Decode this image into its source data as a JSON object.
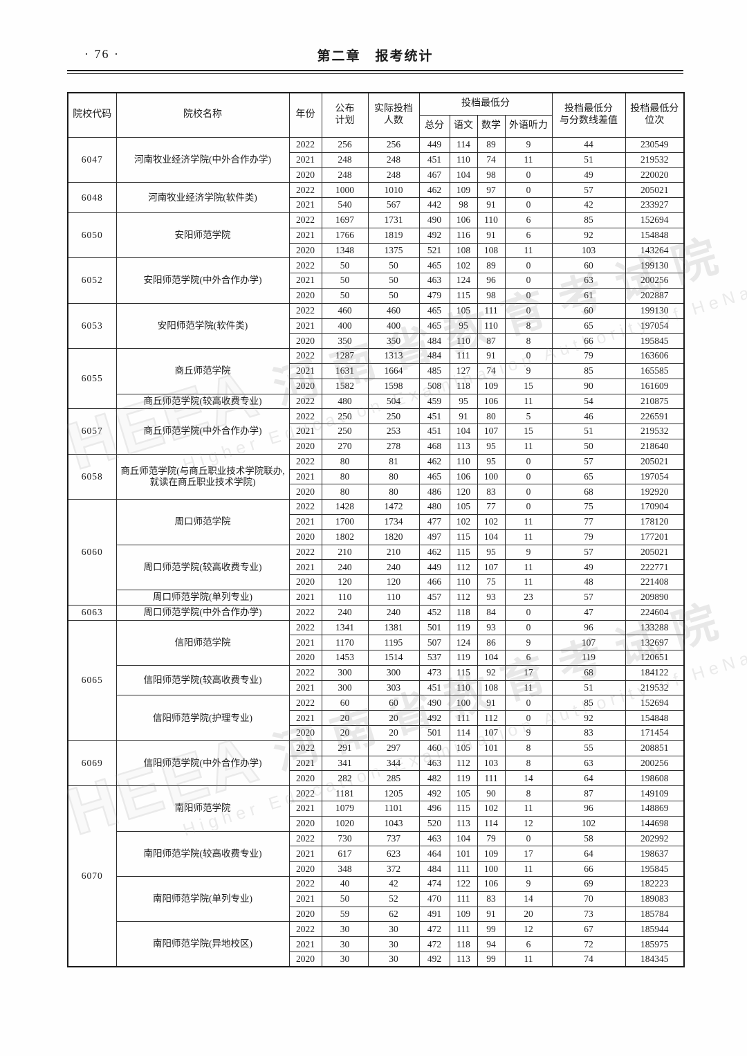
{
  "page": {
    "page_number": "· 76 ·",
    "chapter_title": "第二章　报考统计"
  },
  "watermark": {
    "logo": "HEEA",
    "cn": "河南省教育考试院",
    "en": "Higher Education Examination Authority of HeNan Province"
  },
  "table": {
    "headers": {
      "code": "院校代码",
      "name": "院校名称",
      "year": "年份",
      "plan": "公布\n计划",
      "actual": "实际投档\n人数",
      "min_score_group": "投档最低分",
      "total": "总分",
      "chinese": "语文",
      "math": "数学",
      "listening": "外语听力",
      "diff": "投档最低分\n与分数线差值",
      "rank": "投档最低分\n位次"
    },
    "groups": [
      {
        "code": "6047",
        "schools": [
          {
            "name": "河南牧业经济学院(中外合作办学)",
            "rows": [
              [
                "2022",
                "256",
                "256",
                "449",
                "114",
                "89",
                "9",
                "44",
                "230549"
              ],
              [
                "2021",
                "248",
                "248",
                "451",
                "110",
                "74",
                "11",
                "51",
                "219532"
              ],
              [
                "2020",
                "248",
                "248",
                "467",
                "104",
                "98",
                "0",
                "49",
                "220020"
              ]
            ]
          }
        ]
      },
      {
        "code": "6048",
        "schools": [
          {
            "name": "河南牧业经济学院(软件类)",
            "rows": [
              [
                "2022",
                "1000",
                "1010",
                "462",
                "109",
                "97",
                "0",
                "57",
                "205021"
              ],
              [
                "2021",
                "540",
                "567",
                "442",
                "98",
                "91",
                "0",
                "42",
                "233927"
              ]
            ]
          }
        ]
      },
      {
        "code": "6050",
        "schools": [
          {
            "name": "安阳师范学院",
            "rows": [
              [
                "2022",
                "1697",
                "1731",
                "490",
                "106",
                "110",
                "6",
                "85",
                "152694"
              ],
              [
                "2021",
                "1766",
                "1819",
                "492",
                "116",
                "91",
                "6",
                "92",
                "154848"
              ],
              [
                "2020",
                "1348",
                "1375",
                "521",
                "108",
                "108",
                "11",
                "103",
                "143264"
              ]
            ]
          }
        ]
      },
      {
        "code": "6052",
        "schools": [
          {
            "name": "安阳师范学院(中外合作办学)",
            "rows": [
              [
                "2022",
                "50",
                "50",
                "465",
                "102",
                "89",
                "0",
                "60",
                "199130"
              ],
              [
                "2021",
                "50",
                "50",
                "463",
                "124",
                "96",
                "0",
                "63",
                "200256"
              ],
              [
                "2020",
                "50",
                "50",
                "479",
                "115",
                "98",
                "0",
                "61",
                "202887"
              ]
            ]
          }
        ]
      },
      {
        "code": "6053",
        "schools": [
          {
            "name": "安阳师范学院(软件类)",
            "rows": [
              [
                "2022",
                "460",
                "460",
                "465",
                "105",
                "111",
                "0",
                "60",
                "199130"
              ],
              [
                "2021",
                "400",
                "400",
                "465",
                "95",
                "110",
                "8",
                "65",
                "197054"
              ],
              [
                "2020",
                "350",
                "350",
                "484",
                "110",
                "87",
                "8",
                "66",
                "195845"
              ]
            ]
          }
        ]
      },
      {
        "code": "6055",
        "schools": [
          {
            "name": "商丘师范学院",
            "rows": [
              [
                "2022",
                "1287",
                "1313",
                "484",
                "111",
                "91",
                "0",
                "79",
                "163606"
              ],
              [
                "2021",
                "1631",
                "1664",
                "485",
                "127",
                "74",
                "9",
                "85",
                "165585"
              ],
              [
                "2020",
                "1582",
                "1598",
                "508",
                "118",
                "109",
                "15",
                "90",
                "161609"
              ]
            ]
          },
          {
            "name": "商丘师范学院(较高收费专业)",
            "rows": [
              [
                "2022",
                "480",
                "504",
                "459",
                "95",
                "106",
                "11",
                "54",
                "210875"
              ]
            ]
          }
        ]
      },
      {
        "code": "6057",
        "schools": [
          {
            "name": "商丘师范学院(中外合作办学)",
            "rows": [
              [
                "2022",
                "250",
                "250",
                "451",
                "91",
                "80",
                "5",
                "46",
                "226591"
              ],
              [
                "2021",
                "250",
                "253",
                "451",
                "104",
                "107",
                "15",
                "51",
                "219532"
              ],
              [
                "2020",
                "270",
                "278",
                "468",
                "113",
                "95",
                "11",
                "50",
                "218640"
              ]
            ]
          }
        ]
      },
      {
        "code": "6058",
        "schools": [
          {
            "name": "商丘师范学院(与商丘职业技术学院联办,就读在商丘职业技术学院)",
            "rows": [
              [
                "2022",
                "80",
                "81",
                "462",
                "110",
                "95",
                "0",
                "57",
                "205021"
              ],
              [
                "2021",
                "80",
                "80",
                "465",
                "106",
                "100",
                "0",
                "65",
                "197054"
              ],
              [
                "2020",
                "80",
                "80",
                "486",
                "120",
                "83",
                "0",
                "68",
                "192920"
              ]
            ]
          }
        ]
      },
      {
        "code": "6060",
        "schools": [
          {
            "name": "周口师范学院",
            "rows": [
              [
                "2022",
                "1428",
                "1472",
                "480",
                "105",
                "77",
                "0",
                "75",
                "170904"
              ],
              [
                "2021",
                "1700",
                "1734",
                "477",
                "102",
                "102",
                "11",
                "77",
                "178120"
              ],
              [
                "2020",
                "1802",
                "1820",
                "497",
                "115",
                "104",
                "11",
                "79",
                "177201"
              ]
            ]
          },
          {
            "name": "周口师范学院(较高收费专业)",
            "rows": [
              [
                "2022",
                "210",
                "210",
                "462",
                "115",
                "95",
                "9",
                "57",
                "205021"
              ],
              [
                "2021",
                "240",
                "240",
                "449",
                "112",
                "107",
                "11",
                "49",
                "222771"
              ],
              [
                "2020",
                "120",
                "120",
                "466",
                "110",
                "75",
                "11",
                "48",
                "221408"
              ]
            ]
          },
          {
            "name": "周口师范学院(单列专业)",
            "rows": [
              [
                "2021",
                "110",
                "110",
                "457",
                "112",
                "93",
                "23",
                "57",
                "209890"
              ]
            ]
          }
        ]
      },
      {
        "code": "6063",
        "schools": [
          {
            "name": "周口师范学院(中外合作办学)",
            "rows": [
              [
                "2022",
                "240",
                "240",
                "452",
                "118",
                "84",
                "0",
                "47",
                "224604"
              ]
            ]
          }
        ]
      },
      {
        "code": "6065",
        "schools": [
          {
            "name": "信阳师范学院",
            "rows": [
              [
                "2022",
                "1341",
                "1381",
                "501",
                "119",
                "93",
                "0",
                "96",
                "133288"
              ],
              [
                "2021",
                "1170",
                "1195",
                "507",
                "124",
                "86",
                "9",
                "107",
                "132697"
              ],
              [
                "2020",
                "1453",
                "1514",
                "537",
                "119",
                "104",
                "6",
                "119",
                "120651"
              ]
            ]
          },
          {
            "name": "信阳师范学院(较高收费专业)",
            "rows": [
              [
                "2022",
                "300",
                "300",
                "473",
                "115",
                "92",
                "17",
                "68",
                "184122"
              ],
              [
                "2021",
                "300",
                "303",
                "451",
                "110",
                "108",
                "11",
                "51",
                "219532"
              ]
            ]
          },
          {
            "name": "信阳师范学院(护理专业)",
            "rows": [
              [
                "2022",
                "60",
                "60",
                "490",
                "100",
                "91",
                "0",
                "85",
                "152694"
              ],
              [
                "2021",
                "20",
                "20",
                "492",
                "111",
                "112",
                "0",
                "92",
                "154848"
              ],
              [
                "2020",
                "20",
                "20",
                "501",
                "114",
                "107",
                "9",
                "83",
                "171454"
              ]
            ]
          }
        ]
      },
      {
        "code": "6069",
        "schools": [
          {
            "name": "信阳师范学院(中外合作办学)",
            "rows": [
              [
                "2022",
                "291",
                "297",
                "460",
                "105",
                "101",
                "8",
                "55",
                "208851"
              ],
              [
                "2021",
                "341",
                "344",
                "463",
                "112",
                "103",
                "8",
                "63",
                "200256"
              ],
              [
                "2020",
                "282",
                "285",
                "482",
                "119",
                "111",
                "14",
                "64",
                "198608"
              ]
            ]
          }
        ]
      },
      {
        "code": "6070",
        "schools": [
          {
            "name": "南阳师范学院",
            "rows": [
              [
                "2022",
                "1181",
                "1205",
                "492",
                "105",
                "90",
                "8",
                "87",
                "149109"
              ],
              [
                "2021",
                "1079",
                "1101",
                "496",
                "115",
                "102",
                "11",
                "96",
                "148869"
              ],
              [
                "2020",
                "1020",
                "1043",
                "520",
                "113",
                "114",
                "12",
                "102",
                "144698"
              ]
            ]
          },
          {
            "name": "南阳师范学院(较高收费专业)",
            "rows": [
              [
                "2022",
                "730",
                "737",
                "463",
                "104",
                "79",
                "0",
                "58",
                "202992"
              ],
              [
                "2021",
                "617",
                "623",
                "464",
                "101",
                "109",
                "17",
                "64",
                "198637"
              ],
              [
                "2020",
                "348",
                "372",
                "484",
                "111",
                "100",
                "11",
                "66",
                "195845"
              ]
            ]
          },
          {
            "name": "南阳师范学院(单列专业)",
            "rows": [
              [
                "2022",
                "40",
                "42",
                "474",
                "122",
                "106",
                "9",
                "69",
                "182223"
              ],
              [
                "2021",
                "50",
                "52",
                "470",
                "111",
                "83",
                "14",
                "70",
                "189083"
              ],
              [
                "2020",
                "59",
                "62",
                "491",
                "109",
                "91",
                "20",
                "73",
                "185784"
              ]
            ]
          },
          {
            "name": "南阳师范学院(异地校区)",
            "rows": [
              [
                "2022",
                "30",
                "30",
                "472",
                "111",
                "99",
                "12",
                "67",
                "185944"
              ],
              [
                "2021",
                "30",
                "30",
                "472",
                "118",
                "94",
                "6",
                "72",
                "185975"
              ],
              [
                "2020",
                "30",
                "30",
                "492",
                "113",
                "99",
                "11",
                "74",
                "184345"
              ]
            ]
          }
        ]
      }
    ]
  }
}
